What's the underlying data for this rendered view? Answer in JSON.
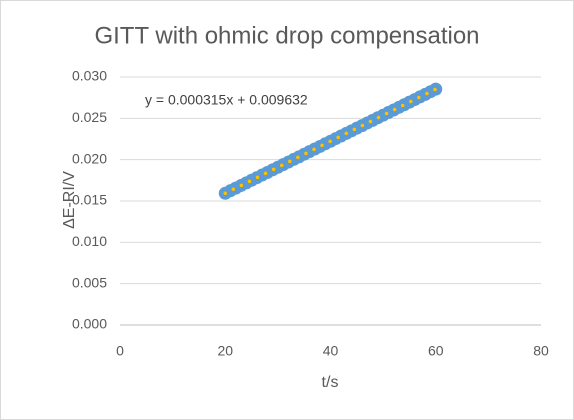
{
  "chart_data": {
    "type": "scatter",
    "title": "GITT with ohmic drop compensation",
    "x_label": "t/s",
    "y_label": "ΔE-RI/V",
    "x": [
      20,
      21,
      22,
      23,
      24,
      25,
      26,
      27,
      28,
      29,
      30,
      31,
      32,
      33,
      34,
      35,
      36,
      37,
      38,
      39,
      40,
      41,
      42,
      43,
      44,
      45,
      46,
      47,
      48,
      49,
      50,
      51,
      52,
      53,
      54,
      55,
      56,
      57,
      58,
      59,
      60
    ],
    "values": [
      0.01593,
      0.01625,
      0.01656,
      0.01688,
      0.01719,
      0.01751,
      0.01782,
      0.01814,
      0.01845,
      0.01877,
      0.01908,
      0.0194,
      0.01971,
      0.02003,
      0.02034,
      0.02066,
      0.02097,
      0.02129,
      0.0216,
      0.02192,
      0.02223,
      0.02255,
      0.02286,
      0.02318,
      0.02349,
      0.02381,
      0.02412,
      0.02444,
      0.02475,
      0.02507,
      0.02538,
      0.0257,
      0.02601,
      0.02633,
      0.02664,
      0.02696,
      0.02727,
      0.02759,
      0.0279,
      0.02822,
      0.02853
    ],
    "color": "#5b9bd5",
    "trendline": {
      "label": "y = 0.000315x + 0.009632",
      "slope": 0.000315,
      "intercept": 0.009632,
      "color": "#ffc000"
    },
    "xlim": [
      0,
      80
    ],
    "xticks": [
      0,
      20,
      40,
      60,
      80
    ],
    "ylim": [
      0,
      0.03
    ],
    "yticks": [
      {
        "value": 0,
        "label": "0.000"
      },
      {
        "value": 0.005,
        "label": "0.005"
      },
      {
        "value": 0.01,
        "label": "0.010"
      },
      {
        "value": 0.015,
        "label": "0.015"
      },
      {
        "value": 0.02,
        "label": "0.020"
      },
      {
        "value": 0.025,
        "label": "0.025"
      },
      {
        "value": 0.03,
        "label": "0.030"
      }
    ],
    "grid": true
  }
}
